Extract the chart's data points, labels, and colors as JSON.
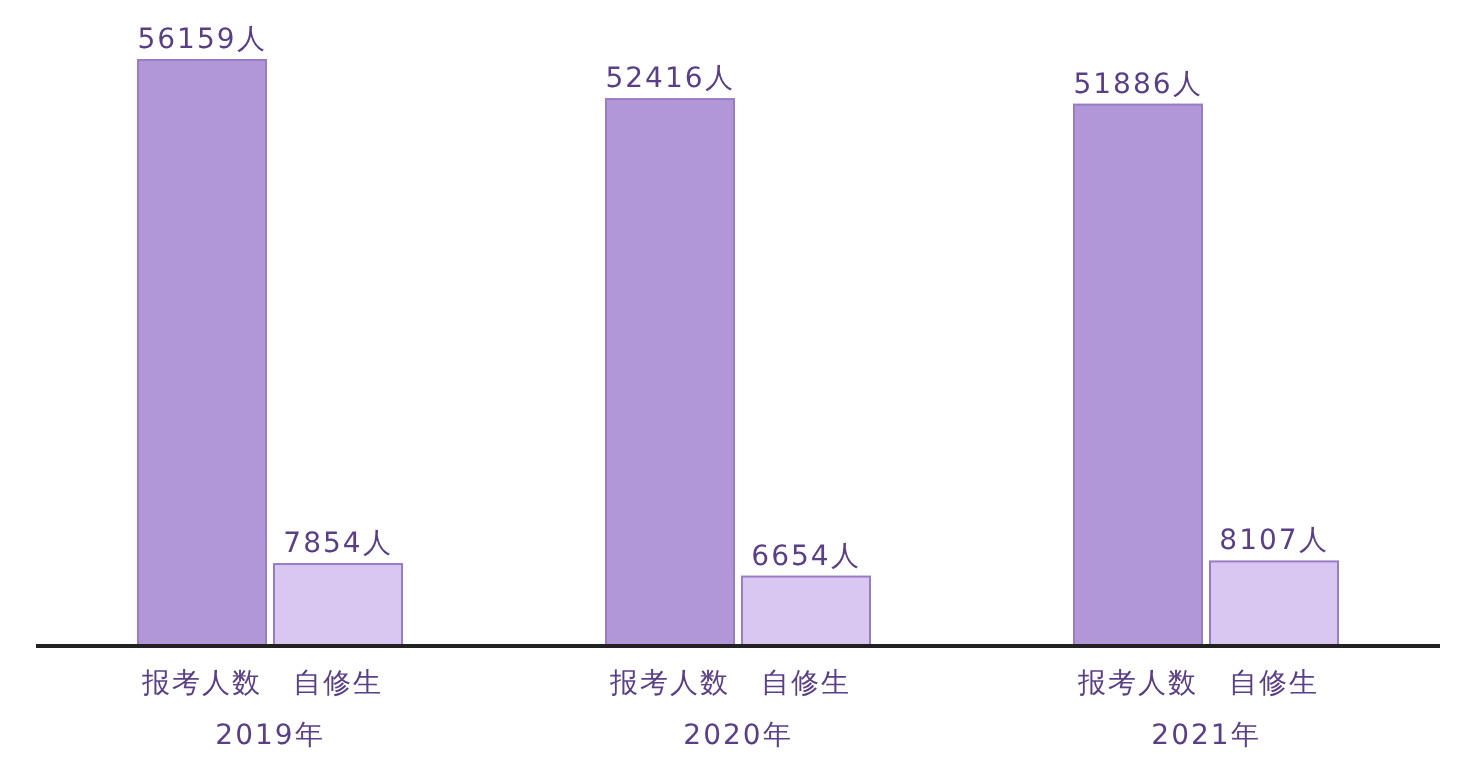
{
  "chart_data": {
    "type": "bar",
    "categories": [
      "2019年",
      "2020年",
      "2021年"
    ],
    "legend": false,
    "series": [
      {
        "name": "报考人数",
        "color": "#b196d8",
        "values": [
          56159,
          52416,
          51886
        ],
        "value_labels": [
          "56159人",
          "52416人",
          "51886人"
        ]
      },
      {
        "name": "自修生",
        "color": "#d9c6f1",
        "values": [
          7854,
          6654,
          8107
        ],
        "value_labels": [
          "7854人",
          "6654人",
          "8107人"
        ]
      }
    ]
  }
}
